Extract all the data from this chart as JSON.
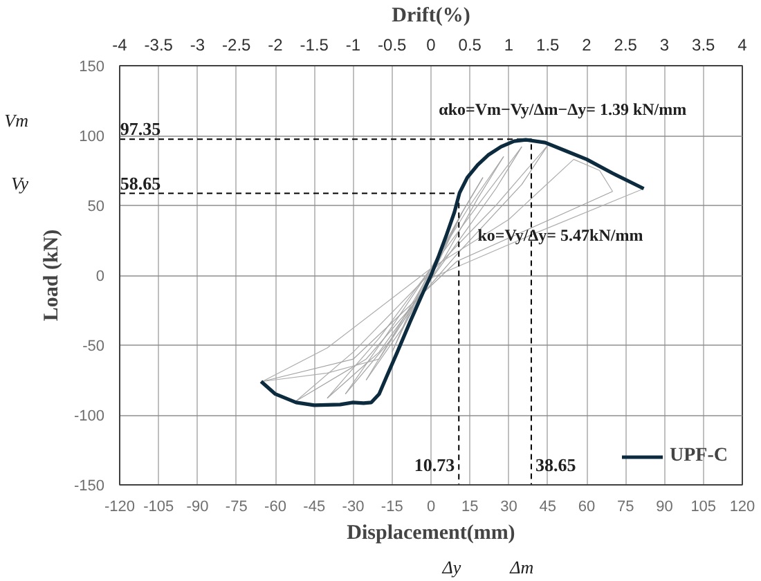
{
  "chart_data": {
    "type": "line",
    "xlabel": "Displacement(mm)",
    "ylabel": "Load (kN)",
    "x2label": "Drift(%)",
    "xlim": [
      -120,
      120
    ],
    "xticks": [
      -120,
      -105,
      -90,
      -75,
      -60,
      -45,
      -30,
      -15,
      0,
      15,
      30,
      45,
      60,
      75,
      90,
      105,
      120
    ],
    "ylim": [
      -150,
      150
    ],
    "yticks": [
      -150,
      -100,
      -50,
      0,
      50,
      100,
      150
    ],
    "x2lim": [
      -4,
      4
    ],
    "x2ticks": [
      -4,
      -3.5,
      -3,
      -2.5,
      -2,
      -1.5,
      -1,
      -0.5,
      0,
      0.5,
      1,
      1.5,
      2,
      2.5,
      3,
      3.5,
      4
    ],
    "grid": true,
    "legend": "bottom right",
    "series": [
      {
        "color": "#a8a8a8",
        "x": [
          -15,
          -5,
          0,
          8,
          12
        ],
        "values": [
          -55,
          -15,
          2,
          30,
          45
        ]
      },
      {
        "color": "#a7a7a7",
        "x": [
          12,
          6,
          0,
          -8,
          -15
        ],
        "values": [
          45,
          25,
          5,
          -25,
          -55
        ]
      },
      {
        "color": "#a9a9a9",
        "x": [
          -25,
          -12,
          0,
          12,
          20
        ],
        "values": [
          -75,
          -35,
          3,
          45,
          70
        ]
      },
      {
        "color": "#a6a6a6",
        "x": [
          20,
          12,
          3,
          -10,
          -25
        ],
        "values": [
          70,
          45,
          10,
          -35,
          -75
        ]
      },
      {
        "color": "#aaaaaa",
        "x": [
          -33,
          -18,
          0,
          15,
          28
        ],
        "values": [
          -85,
          -45,
          5,
          50,
          85
        ]
      },
      {
        "color": "#a5a5a5",
        "x": [
          28,
          18,
          5,
          -15,
          -33
        ],
        "values": [
          85,
          55,
          12,
          -45,
          -85
        ]
      },
      {
        "color": "#ababab",
        "x": [
          -40,
          -20,
          0,
          20,
          35
        ],
        "values": [
          -88,
          -45,
          5,
          55,
          92
        ]
      },
      {
        "color": "#a4a4a4",
        "x": [
          35,
          25,
          5,
          -20,
          -40
        ],
        "values": [
          92,
          62,
          10,
          -55,
          -88
        ]
      },
      {
        "color": "#acacac",
        "x": [
          -52,
          -30,
          0,
          25,
          45
        ],
        "values": [
          -90,
          -55,
          2,
          50,
          93
        ]
      },
      {
        "color": "#a3a3a3",
        "x": [
          45,
          35,
          10,
          -25,
          -52
        ],
        "values": [
          93,
          65,
          15,
          -60,
          -90
        ]
      },
      {
        "color": "#adadad",
        "x": [
          -65,
          -40,
          0,
          30,
          55,
          65,
          70
        ],
        "values": [
          -76,
          -52,
          5,
          40,
          83,
          75,
          60
        ]
      },
      {
        "color": "#a2a2a2",
        "x": [
          70,
          40,
          10,
          -30,
          -65
        ],
        "values": [
          60,
          35,
          10,
          -60,
          -76
        ]
      },
      {
        "color": "#aeaeae",
        "x": [
          -65,
          -40,
          -20,
          0,
          40,
          82
        ],
        "values": [
          -76,
          -70,
          -60,
          -2,
          30,
          62
        ]
      },
      {
        "color": "#000000",
        "line_style": "dashed",
        "x": [
          -120,
          38.65,
          38.65
        ],
        "values": [
          97.35,
          97.35,
          -150
        ]
      },
      {
        "color": "#010101",
        "line_style": "dashed",
        "x": [
          -120,
          10.73,
          10.73
        ],
        "values": [
          58.65,
          58.65,
          -150
        ]
      },
      {
        "name": "UPF-C",
        "color": "#0d2b3e",
        "x": [
          -65.5,
          -60,
          -52,
          -45,
          -35,
          -30,
          -26,
          -23,
          -20,
          -17,
          -13,
          -8,
          -3,
          0,
          3,
          6,
          9,
          11,
          14,
          18,
          22,
          27,
          32,
          36.5,
          44,
          52,
          60,
          70,
          82
        ],
        "values": [
          -76,
          -85,
          -91,
          -93,
          -92.5,
          -91,
          -91.5,
          -91,
          -85,
          -72,
          -55,
          -33,
          -12,
          0,
          14,
          29,
          45,
          59,
          70,
          79,
          86,
          92,
          96,
          97,
          95,
          89,
          83,
          73,
          62
        ]
      }
    ],
    "annotations": [
      "Vm",
      {
        "text": "97.35",
        "x": -112,
        "y": 97.35
      },
      "Vy",
      {
        "text": "58.65",
        "x": -112,
        "y": 58.65
      },
      {
        "text": "10.73",
        "x": 10.73,
        "y": -143
      },
      "Δy",
      {
        "text": "38.65",
        "x": 38.65,
        "y": -143
      },
      "Δm",
      "αko=Vm−Vy/Δm−Δy= 1.39 kN/mm",
      "ko=Vy/Δy= 5.47kN/mm"
    ]
  }
}
